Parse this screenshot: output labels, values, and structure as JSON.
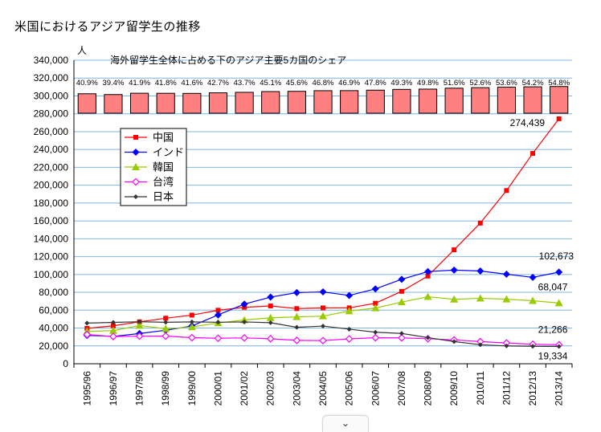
{
  "page": {
    "title": "米国におけるアジア留学生の推移",
    "collapse_chevron": "⌄"
  },
  "chart_data": {
    "type": "line",
    "title": "",
    "ylabel": "人",
    "ylim": [
      0,
      340000
    ],
    "ytick_step": 20000,
    "grid": true,
    "categories": [
      "1995/96",
      "1996/97",
      "1997/98",
      "1998/99",
      "1999/00",
      "2000/01",
      "2001/02",
      "2002/03",
      "2003/04",
      "2004/05",
      "2005/06",
      "2006/07",
      "2007/08",
      "2008/09",
      "2009/10",
      "2010/11",
      "2011/12",
      "2012/13",
      "2013/14"
    ],
    "series": [
      {
        "name": "中国",
        "color": "#ff0000",
        "marker": "square",
        "values": [
          39613,
          42503,
          46958,
          51001,
          54466,
          59939,
          63211,
          64757,
          61765,
          62523,
          62582,
          67723,
          81127,
          98235,
          127628,
          157558,
          194029,
          235597,
          274439
        ]
      },
      {
        "name": "インド",
        "color": "#0000ff",
        "marker": "diamond",
        "values": [
          31743,
          30641,
          33818,
          37482,
          42337,
          54664,
          66836,
          74603,
          79736,
          80466,
          76503,
          83833,
          94563,
          103260,
          104897,
          103895,
          100270,
          96754,
          102673
        ]
      },
      {
        "name": "韓国",
        "color": "#99cc00",
        "marker": "triangle",
        "values": [
          36231,
          37130,
          42890,
          39199,
          41191,
          45685,
          49046,
          51519,
          52484,
          53358,
          59022,
          62392,
          69124,
          75065,
          72153,
          73351,
          72295,
          70627,
          68047
        ]
      },
      {
        "name": "台湾",
        "color": "#ff00ff",
        "marker": "hollow-diamond",
        "values": [
          32702,
          30487,
          30855,
          31043,
          29234,
          28566,
          28930,
          28017,
          26178,
          25914,
          27876,
          29094,
          29001,
          28065,
          26685,
          24818,
          23250,
          21867,
          21266
        ]
      },
      {
        "name": "日本",
        "color": "#333333",
        "marker": "small-diamond",
        "values": [
          45531,
          46292,
          47073,
          46406,
          46872,
          46497,
          46810,
          45960,
          40835,
          42215,
          38712,
          35282,
          33974,
          29264,
          24842,
          21290,
          19966,
          19568,
          19334
        ]
      }
    ],
    "end_labels": [
      {
        "series": "中国",
        "text": "274,439"
      },
      {
        "series": "インド",
        "text": "102,673"
      },
      {
        "series": "韓国",
        "text": "68,047"
      },
      {
        "series": "台湾",
        "text": "21,266"
      },
      {
        "series": "日本",
        "text": "19,334"
      }
    ],
    "legend": {
      "placement": "upper-left"
    },
    "share_bars": {
      "title": "海外留学生全体に占める下のアジア主要5カ国のシェア",
      "color": "#ff8080",
      "labels": [
        "40.9%",
        "39.4%",
        "41.9%",
        "41.8%",
        "41.6%",
        "42.7%",
        "43.7%",
        "45.1%",
        "45.6%",
        "46.8%",
        "46.9%",
        "47.8%",
        "49.3%",
        "49.8%",
        "51.6%",
        "52.6%",
        "53.6%",
        "54.2%",
        "54.8%"
      ],
      "values": [
        40.9,
        39.4,
        41.9,
        41.8,
        41.6,
        42.7,
        43.7,
        45.1,
        45.6,
        46.8,
        46.9,
        47.8,
        49.3,
        49.8,
        51.6,
        52.6,
        53.6,
        54.2,
        54.8
      ]
    }
  }
}
